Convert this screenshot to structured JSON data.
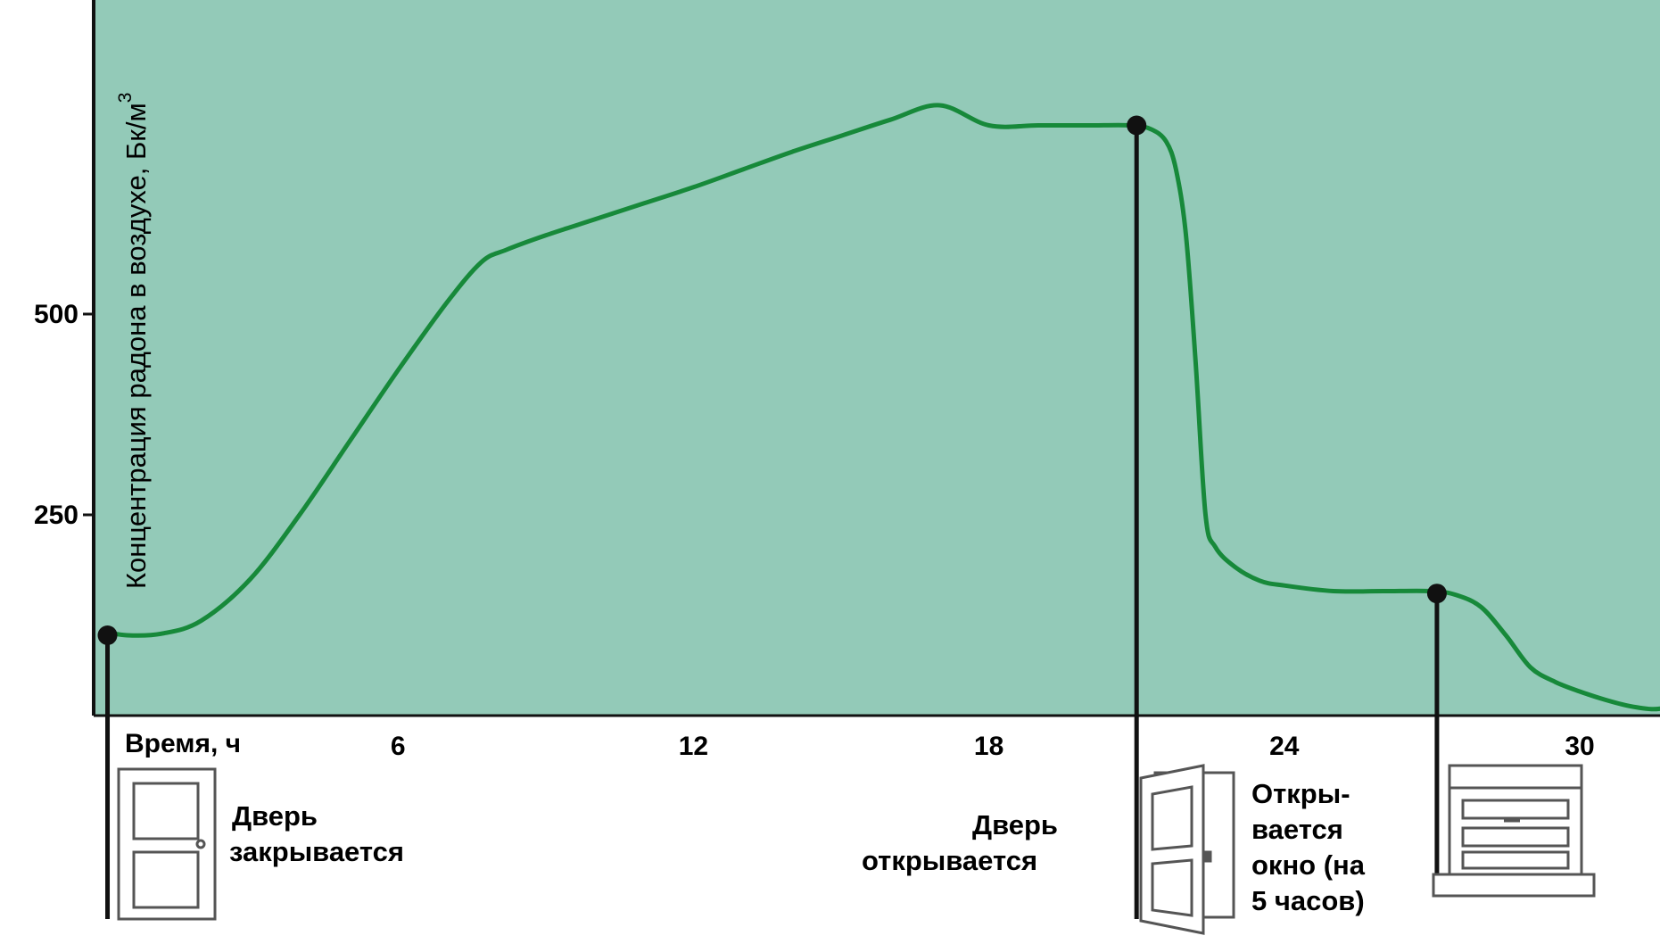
{
  "chart_data": {
    "type": "line",
    "title": "",
    "xlabel": "Время, ч",
    "ylabel": "Концентрация радона в воздухе, Бк/м",
    "ylabel_superscript": "3",
    "xlim": [
      0,
      32
    ],
    "ylim": [
      0,
      740
    ],
    "x_ticks": [
      6,
      12,
      18,
      24,
      30
    ],
    "y_ticks": [
      250,
      500
    ],
    "grid": false,
    "colors": {
      "line": "#17893a",
      "background": "#93cab8",
      "marker": "#111111",
      "event_line": "#111111"
    },
    "series": [
      {
        "x": [
          0,
          0.5,
          1.2,
          2,
          3,
          4,
          5,
          6,
          7,
          7.7,
          8.2,
          9,
          10,
          11,
          12,
          13,
          14,
          15,
          16,
          17,
          18,
          19,
          20,
          20.9,
          21.3,
          21.6,
          21.8,
          22.0,
          22.2,
          22.4,
          22.6,
          23,
          23.5,
          24,
          25,
          26,
          27,
          27.5,
          28,
          28.5,
          29,
          29.5,
          30,
          30.5,
          31,
          31.5,
          32
        ],
        "y": [
          105,
          100,
          102,
          118,
          170,
          250,
          340,
          430,
          515,
          565,
          580,
          598,
          618,
          638,
          658,
          680,
          702,
          722,
          742,
          760,
          735,
          735,
          735,
          735,
          730,
          715,
          680,
          600,
          440,
          250,
          210,
          185,
          168,
          162,
          155,
          155,
          155,
          150,
          135,
          100,
          60,
          42,
          30,
          20,
          12,
          8,
          12
        ]
      }
    ],
    "markers": [
      {
        "x": 0.1,
        "y": 100
      },
      {
        "x": 21,
        "y": 735
      },
      {
        "x": 27.1,
        "y": 152
      }
    ],
    "events": [
      {
        "x": 0.1,
        "label_lines": [
          "Дверь",
          "закрывается"
        ],
        "icon": "closed-door-icon"
      },
      {
        "x": 21,
        "label_lines": [
          "Дверь",
          "открывается"
        ],
        "icon": "open-door-icon"
      },
      {
        "x": 27.1,
        "label_lines": [
          "Откры-",
          "вается",
          "окно (на",
          "5 часов)"
        ],
        "icon": "window-icon"
      }
    ]
  }
}
